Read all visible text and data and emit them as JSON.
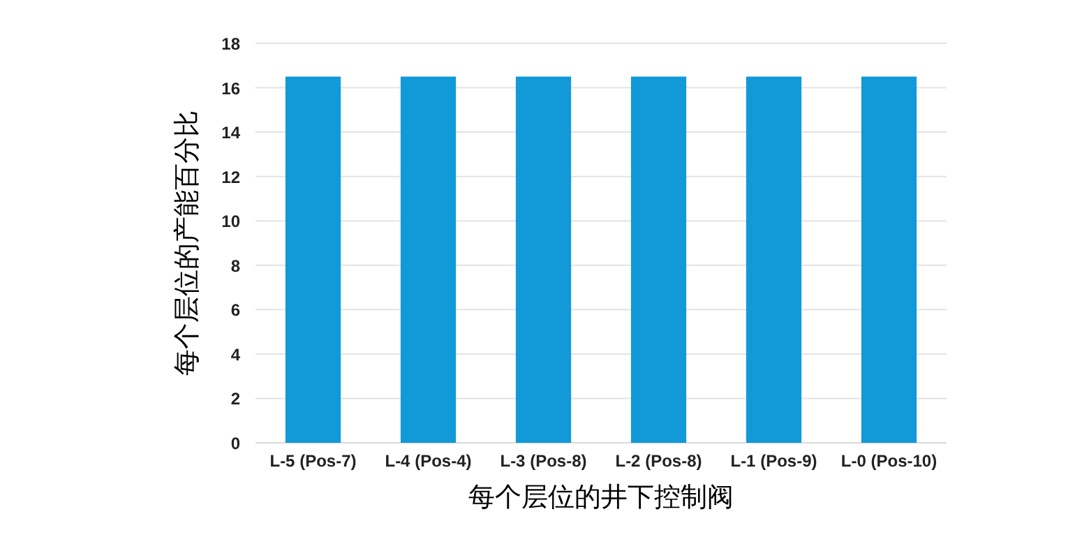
{
  "chart_data": {
    "type": "bar",
    "xlabel": "每个层位的井下控制阀",
    "ylabel": "每个层位的产能百分比",
    "categories": [
      "L-5 (Pos-7)",
      "L-4 (Pos-4)",
      "L-3 (Pos-8)",
      "L-2 (Pos-8)",
      "L-1 (Pos-9)",
      "L-0 (Pos-10)"
    ],
    "series": [
      {
        "color": "#1199d8",
        "values": [
          16.5,
          16.5,
          16.5,
          16.5,
          16.5,
          16.5
        ]
      }
    ],
    "ylim": [
      0,
      18
    ],
    "yticks": [
      0,
      2,
      4,
      6,
      8,
      10,
      12,
      14,
      16,
      18
    ],
    "grid": "y"
  }
}
